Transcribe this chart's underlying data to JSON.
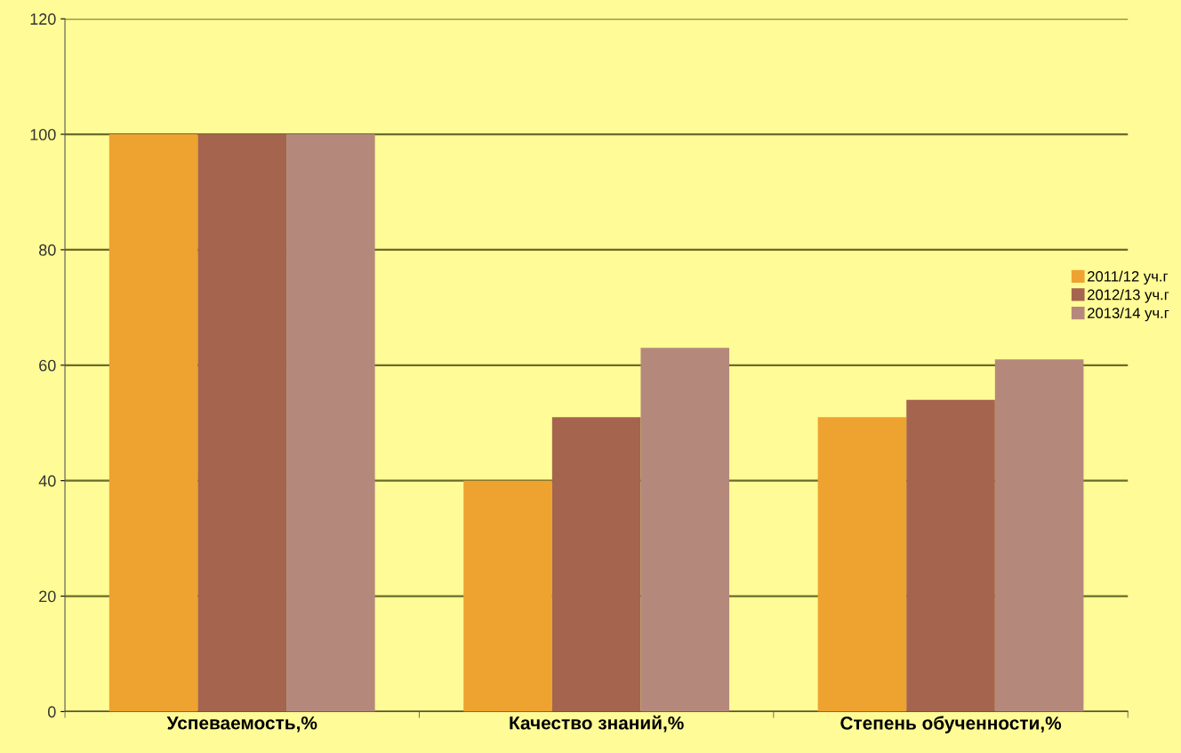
{
  "chart_data": {
    "type": "bar",
    "categories": [
      "Успеваемость,%",
      "Качество знаний,%",
      "Степень обученности,%"
    ],
    "series": [
      {
        "name": "2011/12 уч.г",
        "color": "#eea22f",
        "values": [
          100,
          40,
          51
        ]
      },
      {
        "name": "2012/13 уч.г",
        "color": "#a5644d",
        "values": [
          100,
          51,
          54
        ]
      },
      {
        "name": "2013/14 уч.г",
        "color": "#b5887c",
        "values": [
          100,
          63,
          61
        ]
      }
    ],
    "ylim": [
      0,
      120
    ],
    "yticks": [
      0,
      20,
      40,
      60,
      80,
      100,
      120
    ],
    "grid": "y",
    "legend": "right"
  }
}
